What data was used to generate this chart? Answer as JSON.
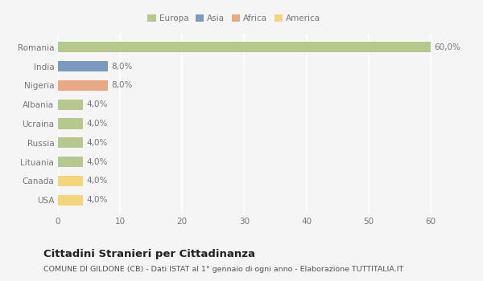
{
  "countries": [
    "Romania",
    "India",
    "Nigeria",
    "Albania",
    "Ucraina",
    "Russia",
    "Lituania",
    "Canada",
    "USA"
  ],
  "values": [
    60.0,
    8.0,
    8.0,
    4.0,
    4.0,
    4.0,
    4.0,
    4.0,
    4.0
  ],
  "bar_colors": [
    "#b5c98e",
    "#7a9abf",
    "#e8a882",
    "#b5c98e",
    "#b5c98e",
    "#b5c98e",
    "#b5c98e",
    "#f5d57a",
    "#f5d57a"
  ],
  "label_texts": [
    "60,0%",
    "8,0%",
    "8,0%",
    "4,0%",
    "4,0%",
    "4,0%",
    "4,0%",
    "4,0%",
    "4,0%"
  ],
  "legend_labels": [
    "Europa",
    "Asia",
    "Africa",
    "America"
  ],
  "legend_colors": [
    "#b5c98e",
    "#7a9abf",
    "#e8a882",
    "#f5d57a"
  ],
  "xlim": [
    0,
    63
  ],
  "xticks": [
    0,
    10,
    20,
    30,
    40,
    50,
    60
  ],
  "title": "Cittadini Stranieri per Cittadinanza",
  "subtitle": "COMUNE DI GILDONE (CB) - Dati ISTAT al 1° gennaio di ogni anno - Elaborazione TUTTITALIA.IT",
  "background_color": "#f5f5f5",
  "grid_color": "#ffffff",
  "text_color": "#777777",
  "title_color": "#222222",
  "subtitle_color": "#555555",
  "bar_height": 0.55,
  "label_fontsize": 7.5,
  "tick_fontsize": 7.5,
  "title_fontsize": 9.5,
  "subtitle_fontsize": 6.8
}
